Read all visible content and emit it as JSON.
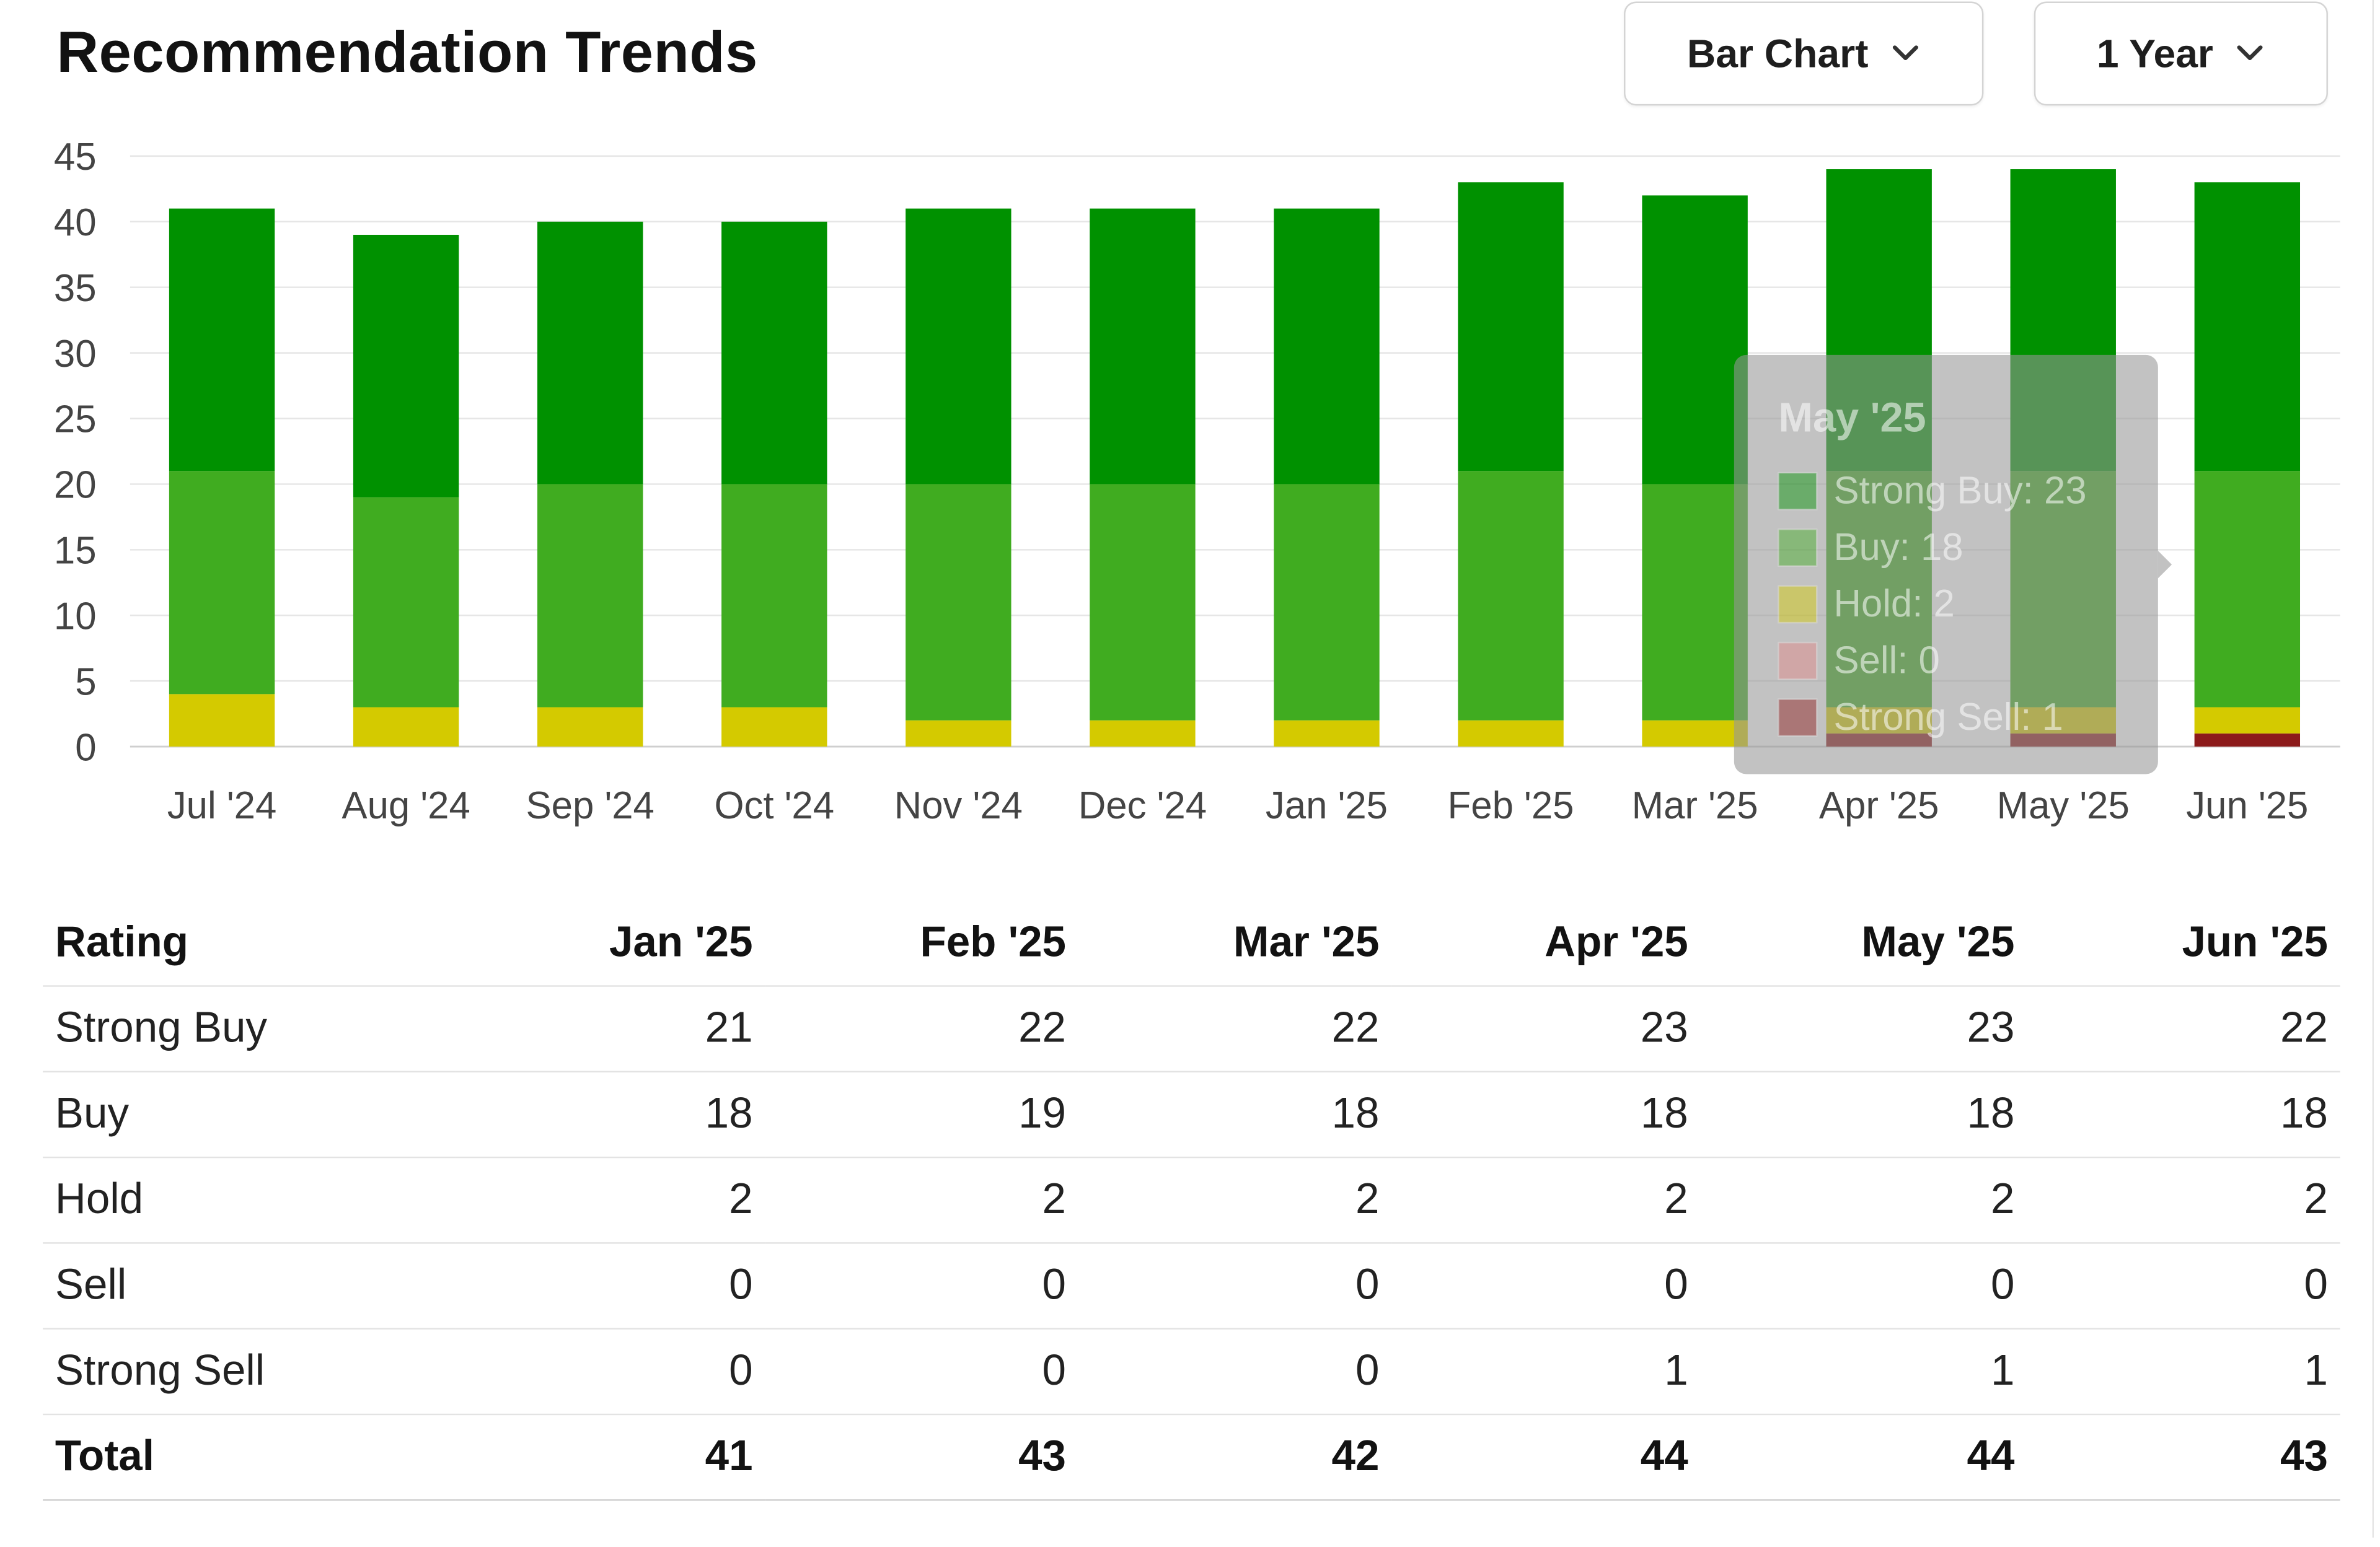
{
  "header": {
    "title": "Recommendation Trends",
    "chart_type_select": {
      "selected": "Bar Chart",
      "icon": "chevron-down-icon"
    },
    "range_select": {
      "selected": "1 Year",
      "icon": "chevron-down-icon"
    }
  },
  "colors": {
    "strong_buy": "#009100",
    "buy": "#40ac20",
    "hold": "#d4ca00",
    "sell": "#e08585",
    "strong_sell": "#8c1b1b",
    "grid": "#e6e6e6"
  },
  "chart_data": {
    "type": "bar",
    "stacked": true,
    "categories": [
      "Jul '24",
      "Aug '24",
      "Sep '24",
      "Oct '24",
      "Nov '24",
      "Dec '24",
      "Jan '25",
      "Feb '25",
      "Mar '25",
      "Apr '25",
      "May '25",
      "Jun '25"
    ],
    "series": [
      {
        "name": "Strong Buy",
        "values": [
          20,
          20,
          20,
          20,
          21,
          21,
          21,
          22,
          22,
          23,
          23,
          22
        ]
      },
      {
        "name": "Buy",
        "values": [
          17,
          16,
          17,
          17,
          18,
          18,
          18,
          19,
          18,
          18,
          18,
          18
        ]
      },
      {
        "name": "Hold",
        "values": [
          4,
          3,
          3,
          3,
          2,
          2,
          2,
          2,
          2,
          2,
          2,
          2
        ]
      },
      {
        "name": "Sell",
        "values": [
          0,
          0,
          0,
          0,
          0,
          0,
          0,
          0,
          0,
          0,
          0,
          0
        ]
      },
      {
        "name": "Strong Sell",
        "values": [
          0,
          0,
          0,
          0,
          0,
          0,
          0,
          0,
          0,
          1,
          1,
          1
        ]
      }
    ],
    "yticks": [
      0,
      5,
      10,
      15,
      20,
      25,
      30,
      35,
      40,
      45
    ],
    "ylim": [
      0,
      45
    ],
    "grid": true,
    "legend": "none",
    "tooltip": {
      "title": "May '25",
      "lines": [
        "Strong Buy: 23",
        "Buy: 18",
        "Hold: 2",
        "Sell: 0",
        "Strong Sell: 1"
      ]
    }
  },
  "table": {
    "header_label": "Rating",
    "columns": [
      "Jan '25",
      "Feb '25",
      "Mar '25",
      "Apr '25",
      "May '25",
      "Jun '25"
    ],
    "rows": [
      {
        "label": "Strong Buy",
        "values": [
          21,
          22,
          22,
          23,
          23,
          22
        ]
      },
      {
        "label": "Buy",
        "values": [
          18,
          19,
          18,
          18,
          18,
          18
        ]
      },
      {
        "label": "Hold",
        "values": [
          2,
          2,
          2,
          2,
          2,
          2
        ]
      },
      {
        "label": "Sell",
        "values": [
          0,
          0,
          0,
          0,
          0,
          0
        ]
      },
      {
        "label": "Strong Sell",
        "values": [
          0,
          0,
          0,
          1,
          1,
          1
        ]
      }
    ],
    "total": {
      "label": "Total",
      "values": [
        41,
        43,
        42,
        44,
        44,
        43
      ]
    }
  }
}
